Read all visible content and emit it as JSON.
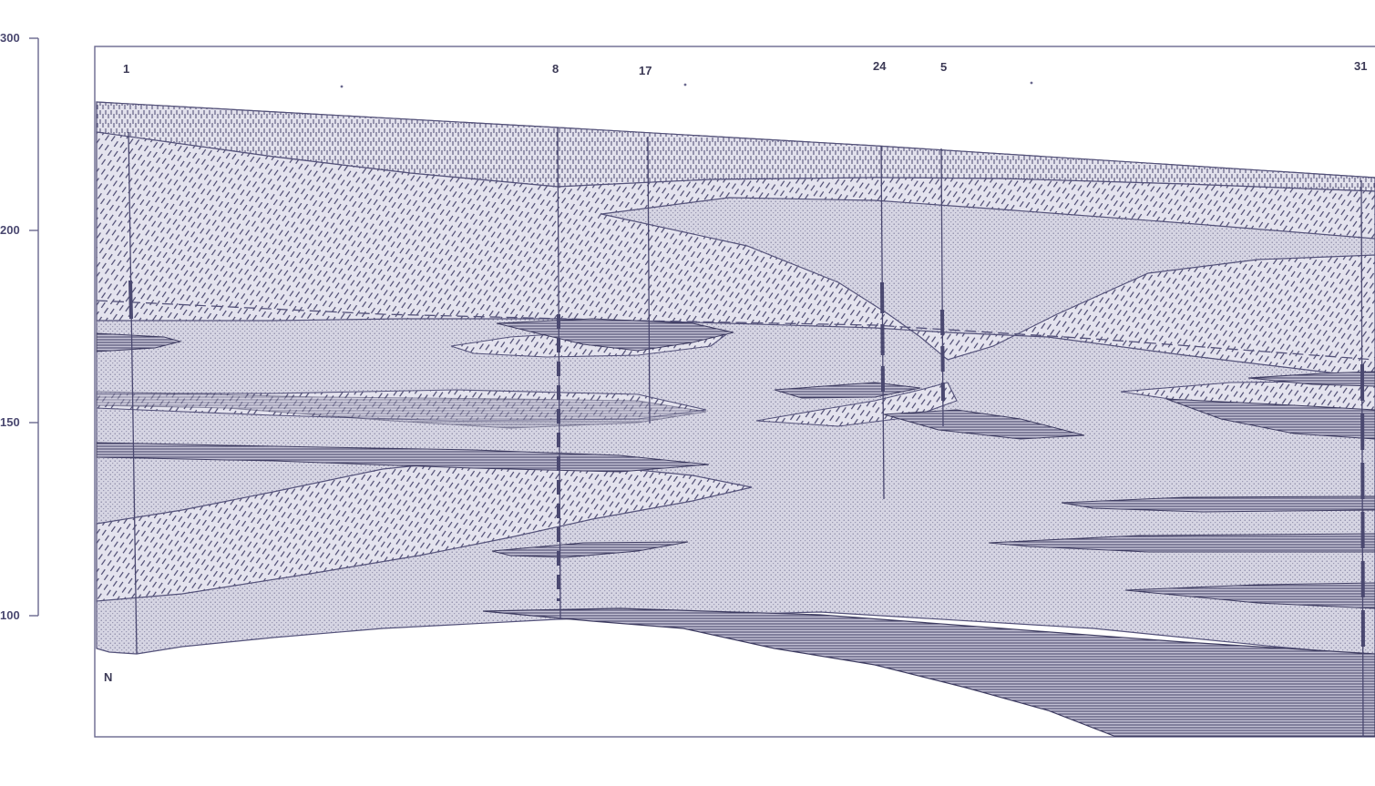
{
  "figure": {
    "axis": {
      "ticks": [
        {
          "label": "300",
          "value": 300
        },
        {
          "label": "200",
          "value": 200
        },
        {
          "label": "150",
          "value": 150
        },
        {
          "label": "100",
          "value": 100
        }
      ]
    },
    "boreholes": [
      {
        "id": "1",
        "label": "1"
      },
      {
        "id": "8",
        "label": "8"
      },
      {
        "id": "17",
        "label": "17"
      },
      {
        "id": "24",
        "label": "24"
      },
      {
        "id": "5",
        "label": "5"
      },
      {
        "id": "31",
        "label": "31"
      }
    ],
    "orientation_label": "N",
    "colors": {
      "frame": "#6a688e",
      "outline": "#54527a",
      "sand_fill": "#d6d5e3",
      "hatch": "#3f3d62",
      "clay_fill": "#8c8aa8",
      "well": "#4a4870"
    }
  }
}
